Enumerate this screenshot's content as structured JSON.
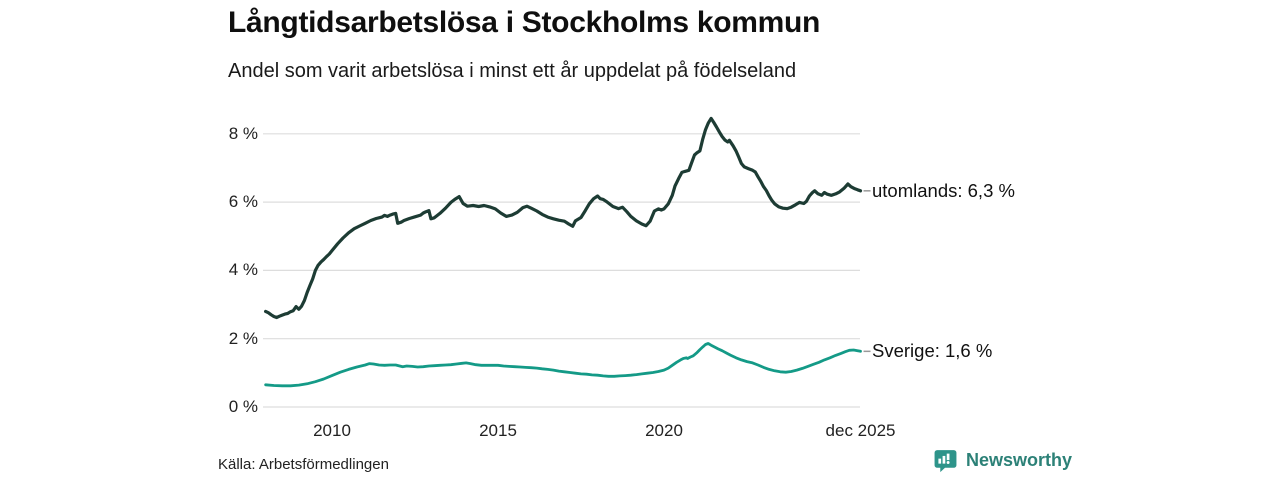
{
  "footer": {
    "source": "Källa: Arbetsförmedlingen",
    "brand": "Newsworthy"
  },
  "colors": {
    "grid": "#dddddd",
    "leader_dash": "#999999",
    "utomlands_line": "#1d3c34",
    "sverige_line": "#149a87",
    "brand_teal": "#2e948a"
  },
  "chart_data": {
    "type": "line",
    "title": "Långtidsarbetslösa i Stockholms kommun",
    "subtitle": "Andel som varit arbetslösa i minst ett år uppdelat på födelseland",
    "xlabel": "",
    "ylabel": "",
    "grid_color": "#dddddd",
    "legend_position": "right-end-labels",
    "x_axis": {
      "range": [
        2008.0,
        2026.0
      ],
      "ticks": [
        {
          "t": 2010,
          "label": "2010"
        },
        {
          "t": 2015,
          "label": "2015"
        },
        {
          "t": 2020,
          "label": "2020"
        },
        {
          "t": 2025.92,
          "label": "dec 2025"
        }
      ]
    },
    "y_axis": {
      "range": [
        0,
        8.6
      ],
      "ticks": [
        {
          "v": 0,
          "label": "0 %"
        },
        {
          "v": 2,
          "label": "2 %"
        },
        {
          "v": 4,
          "label": "4 %"
        },
        {
          "v": 6,
          "label": "6 %"
        },
        {
          "v": 8,
          "label": "8 %"
        }
      ]
    },
    "series": [
      {
        "name": "utomlands",
        "annotation": "utomlands: 6,3 %",
        "end_value": "6,3 %",
        "color": "#1d3c34",
        "width": 3.2,
        "points": [
          [
            2008.0,
            2.8
          ],
          [
            2008.08,
            2.76
          ],
          [
            2008.17,
            2.7
          ],
          [
            2008.25,
            2.65
          ],
          [
            2008.33,
            2.62
          ],
          [
            2008.42,
            2.66
          ],
          [
            2008.5,
            2.69
          ],
          [
            2008.58,
            2.72
          ],
          [
            2008.67,
            2.74
          ],
          [
            2008.75,
            2.79
          ],
          [
            2008.83,
            2.82
          ],
          [
            2008.92,
            2.94
          ],
          [
            2009.0,
            2.86
          ],
          [
            2009.08,
            2.95
          ],
          [
            2009.17,
            3.12
          ],
          [
            2009.25,
            3.35
          ],
          [
            2009.33,
            3.55
          ],
          [
            2009.42,
            3.75
          ],
          [
            2009.5,
            4.0
          ],
          [
            2009.58,
            4.15
          ],
          [
            2009.67,
            4.25
          ],
          [
            2009.75,
            4.32
          ],
          [
            2009.83,
            4.4
          ],
          [
            2009.92,
            4.48
          ],
          [
            2010.0,
            4.58
          ],
          [
            2010.17,
            4.78
          ],
          [
            2010.33,
            4.95
          ],
          [
            2010.5,
            5.1
          ],
          [
            2010.67,
            5.22
          ],
          [
            2010.83,
            5.3
          ],
          [
            2011.0,
            5.38
          ],
          [
            2011.17,
            5.46
          ],
          [
            2011.33,
            5.52
          ],
          [
            2011.5,
            5.56
          ],
          [
            2011.58,
            5.61
          ],
          [
            2011.67,
            5.58
          ],
          [
            2011.75,
            5.62
          ],
          [
            2011.83,
            5.65
          ],
          [
            2011.92,
            5.67
          ],
          [
            2011.98,
            5.38
          ],
          [
            2012.08,
            5.41
          ],
          [
            2012.17,
            5.46
          ],
          [
            2012.33,
            5.52
          ],
          [
            2012.5,
            5.57
          ],
          [
            2012.67,
            5.62
          ],
          [
            2012.75,
            5.68
          ],
          [
            2012.83,
            5.72
          ],
          [
            2012.92,
            5.75
          ],
          [
            2012.98,
            5.51
          ],
          [
            2013.08,
            5.54
          ],
          [
            2013.25,
            5.67
          ],
          [
            2013.42,
            5.82
          ],
          [
            2013.58,
            5.99
          ],
          [
            2013.7,
            6.08
          ],
          [
            2013.83,
            6.16
          ],
          [
            2013.95,
            5.96
          ],
          [
            2014.08,
            5.88
          ],
          [
            2014.25,
            5.9
          ],
          [
            2014.42,
            5.87
          ],
          [
            2014.58,
            5.9
          ],
          [
            2014.75,
            5.86
          ],
          [
            2014.92,
            5.8
          ],
          [
            2015.08,
            5.68
          ],
          [
            2015.25,
            5.58
          ],
          [
            2015.42,
            5.62
          ],
          [
            2015.58,
            5.7
          ],
          [
            2015.75,
            5.84
          ],
          [
            2015.87,
            5.88
          ],
          [
            2016.0,
            5.82
          ],
          [
            2016.17,
            5.74
          ],
          [
            2016.33,
            5.64
          ],
          [
            2016.5,
            5.56
          ],
          [
            2016.67,
            5.51
          ],
          [
            2016.83,
            5.47
          ],
          [
            2017.0,
            5.44
          ],
          [
            2017.13,
            5.36
          ],
          [
            2017.25,
            5.29
          ],
          [
            2017.33,
            5.45
          ],
          [
            2017.5,
            5.55
          ],
          [
            2017.63,
            5.75
          ],
          [
            2017.75,
            5.95
          ],
          [
            2017.88,
            6.1
          ],
          [
            2018.0,
            6.18
          ],
          [
            2018.08,
            6.1
          ],
          [
            2018.17,
            6.08
          ],
          [
            2018.29,
            6.0
          ],
          [
            2018.46,
            5.87
          ],
          [
            2018.63,
            5.81
          ],
          [
            2018.75,
            5.85
          ],
          [
            2018.88,
            5.72
          ],
          [
            2019.0,
            5.58
          ],
          [
            2019.17,
            5.45
          ],
          [
            2019.33,
            5.36
          ],
          [
            2019.46,
            5.31
          ],
          [
            2019.58,
            5.44
          ],
          [
            2019.71,
            5.74
          ],
          [
            2019.83,
            5.8
          ],
          [
            2019.92,
            5.77
          ],
          [
            2020.0,
            5.8
          ],
          [
            2020.13,
            5.95
          ],
          [
            2020.25,
            6.2
          ],
          [
            2020.33,
            6.47
          ],
          [
            2020.46,
            6.73
          ],
          [
            2020.54,
            6.87
          ],
          [
            2020.63,
            6.9
          ],
          [
            2020.75,
            6.93
          ],
          [
            2020.83,
            7.15
          ],
          [
            2020.92,
            7.38
          ],
          [
            2021.0,
            7.45
          ],
          [
            2021.08,
            7.5
          ],
          [
            2021.17,
            7.85
          ],
          [
            2021.25,
            8.12
          ],
          [
            2021.33,
            8.31
          ],
          [
            2021.42,
            8.45
          ],
          [
            2021.5,
            8.33
          ],
          [
            2021.58,
            8.2
          ],
          [
            2021.67,
            8.05
          ],
          [
            2021.75,
            7.92
          ],
          [
            2021.83,
            7.82
          ],
          [
            2021.92,
            7.76
          ],
          [
            2021.97,
            7.81
          ],
          [
            2022.08,
            7.65
          ],
          [
            2022.17,
            7.5
          ],
          [
            2022.25,
            7.32
          ],
          [
            2022.33,
            7.13
          ],
          [
            2022.42,
            7.03
          ],
          [
            2022.54,
            6.98
          ],
          [
            2022.67,
            6.93
          ],
          [
            2022.75,
            6.88
          ],
          [
            2022.83,
            6.74
          ],
          [
            2022.92,
            6.6
          ],
          [
            2023.0,
            6.45
          ],
          [
            2023.08,
            6.34
          ],
          [
            2023.17,
            6.18
          ],
          [
            2023.25,
            6.05
          ],
          [
            2023.33,
            5.95
          ],
          [
            2023.46,
            5.86
          ],
          [
            2023.58,
            5.82
          ],
          [
            2023.71,
            5.81
          ],
          [
            2023.83,
            5.85
          ],
          [
            2023.96,
            5.92
          ],
          [
            2024.08,
            5.99
          ],
          [
            2024.21,
            5.96
          ],
          [
            2024.29,
            6.02
          ],
          [
            2024.38,
            6.18
          ],
          [
            2024.46,
            6.27
          ],
          [
            2024.54,
            6.33
          ],
          [
            2024.63,
            6.25
          ],
          [
            2024.75,
            6.2
          ],
          [
            2024.83,
            6.28
          ],
          [
            2024.92,
            6.23
          ],
          [
            2025.04,
            6.2
          ],
          [
            2025.17,
            6.24
          ],
          [
            2025.29,
            6.3
          ],
          [
            2025.42,
            6.4
          ],
          [
            2025.54,
            6.53
          ],
          [
            2025.63,
            6.45
          ],
          [
            2025.75,
            6.39
          ],
          [
            2025.83,
            6.36
          ],
          [
            2025.92,
            6.33
          ]
        ]
      },
      {
        "name": "Sverige",
        "annotation": "Sverige: 1,6 %",
        "end_value": "1,6 %",
        "color": "#149a87",
        "width": 2.8,
        "points": [
          [
            2008.0,
            0.65
          ],
          [
            2008.25,
            0.63
          ],
          [
            2008.5,
            0.62
          ],
          [
            2008.75,
            0.62
          ],
          [
            2009.0,
            0.64
          ],
          [
            2009.25,
            0.68
          ],
          [
            2009.5,
            0.74
          ],
          [
            2009.75,
            0.82
          ],
          [
            2010.0,
            0.92
          ],
          [
            2010.25,
            1.02
          ],
          [
            2010.5,
            1.1
          ],
          [
            2010.75,
            1.17
          ],
          [
            2011.0,
            1.23
          ],
          [
            2011.13,
            1.27
          ],
          [
            2011.25,
            1.26
          ],
          [
            2011.42,
            1.23
          ],
          [
            2011.58,
            1.22
          ],
          [
            2011.75,
            1.23
          ],
          [
            2011.92,
            1.23
          ],
          [
            2012.04,
            1.2
          ],
          [
            2012.13,
            1.18
          ],
          [
            2012.25,
            1.2
          ],
          [
            2012.42,
            1.19
          ],
          [
            2012.58,
            1.17
          ],
          [
            2012.75,
            1.18
          ],
          [
            2012.92,
            1.2
          ],
          [
            2013.08,
            1.21
          ],
          [
            2013.25,
            1.22
          ],
          [
            2013.42,
            1.23
          ],
          [
            2013.58,
            1.24
          ],
          [
            2013.75,
            1.26
          ],
          [
            2013.92,
            1.28
          ],
          [
            2014.04,
            1.29
          ],
          [
            2014.17,
            1.27
          ],
          [
            2014.33,
            1.24
          ],
          [
            2014.5,
            1.22
          ],
          [
            2014.67,
            1.22
          ],
          [
            2014.83,
            1.22
          ],
          [
            2015.0,
            1.22
          ],
          [
            2015.17,
            1.2
          ],
          [
            2015.33,
            1.19
          ],
          [
            2015.5,
            1.18
          ],
          [
            2015.67,
            1.17
          ],
          [
            2015.83,
            1.16
          ],
          [
            2016.0,
            1.15
          ],
          [
            2016.17,
            1.14
          ],
          [
            2016.33,
            1.12
          ],
          [
            2016.5,
            1.1
          ],
          [
            2016.67,
            1.08
          ],
          [
            2016.83,
            1.05
          ],
          [
            2017.0,
            1.03
          ],
          [
            2017.17,
            1.01
          ],
          [
            2017.33,
            0.99
          ],
          [
            2017.5,
            0.97
          ],
          [
            2017.67,
            0.96
          ],
          [
            2017.83,
            0.94
          ],
          [
            2018.0,
            0.93
          ],
          [
            2018.17,
            0.91
          ],
          [
            2018.33,
            0.9
          ],
          [
            2018.5,
            0.9
          ],
          [
            2018.67,
            0.91
          ],
          [
            2018.83,
            0.92
          ],
          [
            2019.0,
            0.93
          ],
          [
            2019.17,
            0.95
          ],
          [
            2019.33,
            0.97
          ],
          [
            2019.5,
            0.99
          ],
          [
            2019.67,
            1.01
          ],
          [
            2019.83,
            1.04
          ],
          [
            2020.0,
            1.08
          ],
          [
            2020.13,
            1.14
          ],
          [
            2020.25,
            1.22
          ],
          [
            2020.38,
            1.31
          ],
          [
            2020.5,
            1.38
          ],
          [
            2020.58,
            1.42
          ],
          [
            2020.67,
            1.44
          ],
          [
            2020.71,
            1.42
          ],
          [
            2020.79,
            1.46
          ],
          [
            2020.88,
            1.5
          ],
          [
            2021.0,
            1.6
          ],
          [
            2021.08,
            1.68
          ],
          [
            2021.17,
            1.76
          ],
          [
            2021.25,
            1.83
          ],
          [
            2021.33,
            1.86
          ],
          [
            2021.42,
            1.81
          ],
          [
            2021.5,
            1.77
          ],
          [
            2021.63,
            1.7
          ],
          [
            2021.75,
            1.65
          ],
          [
            2021.88,
            1.58
          ],
          [
            2022.0,
            1.52
          ],
          [
            2022.17,
            1.44
          ],
          [
            2022.33,
            1.38
          ],
          [
            2022.5,
            1.33
          ],
          [
            2022.67,
            1.29
          ],
          [
            2022.83,
            1.23
          ],
          [
            2023.0,
            1.16
          ],
          [
            2023.17,
            1.1
          ],
          [
            2023.33,
            1.06
          ],
          [
            2023.5,
            1.03
          ],
          [
            2023.67,
            1.02
          ],
          [
            2023.83,
            1.04
          ],
          [
            2024.0,
            1.08
          ],
          [
            2024.17,
            1.13
          ],
          [
            2024.33,
            1.19
          ],
          [
            2024.5,
            1.25
          ],
          [
            2024.67,
            1.31
          ],
          [
            2024.83,
            1.38
          ],
          [
            2025.0,
            1.44
          ],
          [
            2025.17,
            1.51
          ],
          [
            2025.33,
            1.57
          ],
          [
            2025.46,
            1.62
          ],
          [
            2025.58,
            1.66
          ],
          [
            2025.71,
            1.67
          ],
          [
            2025.83,
            1.65
          ],
          [
            2025.92,
            1.63
          ]
        ]
      }
    ]
  }
}
